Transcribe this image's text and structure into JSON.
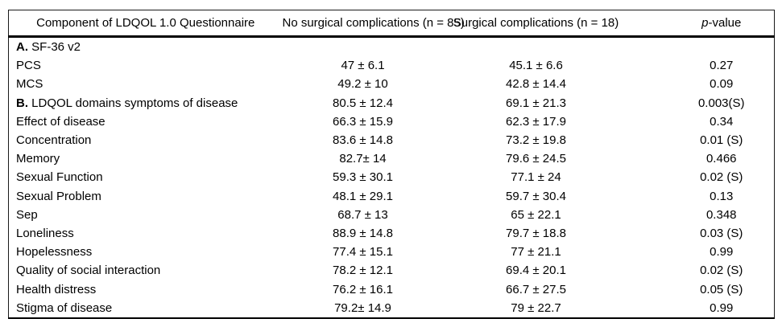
{
  "table": {
    "header": {
      "component": "Component of LDQOL 1.0 Questionnaire",
      "no_complications": "No surgical complications (n = 85)",
      "complications": "Surgical complications (n = 18)",
      "p_italic": "p",
      "p_rest": "-value"
    },
    "rows": [
      {
        "prefix": "A.",
        "label": " SF-36 v2",
        "no_complications": "",
        "complications": "",
        "p_value": ""
      },
      {
        "prefix": "",
        "label": "PCS",
        "no_complications": "47 ± 6.1",
        "complications": "45.1 ± 6.6",
        "p_value": "0.27"
      },
      {
        "prefix": "",
        "label": "MCS",
        "no_complications": "49.2 ± 10",
        "complications": "42.8 ± 14.4",
        "p_value": "0.09"
      },
      {
        "prefix": "B.",
        "label": " LDQOL domains symptoms of disease",
        "no_complications": "80.5 ± 12.4",
        "complications": "69.1 ± 21.3",
        "p_value": "0.003(S)"
      },
      {
        "prefix": "",
        "label": "Effect of disease",
        "no_complications": "66.3 ± 15.9",
        "complications": "62.3 ± 17.9",
        "p_value": "0.34"
      },
      {
        "prefix": "",
        "label": "Concentration",
        "no_complications": "83.6 ± 14.8",
        "complications": "73.2 ± 19.8",
        "p_value": "0.01 (S)"
      },
      {
        "prefix": "",
        "label": "Memory",
        "no_complications": "82.7± 14",
        "complications": "79.6 ± 24.5",
        "p_value": "0.466"
      },
      {
        "prefix": "",
        "label": "Sexual Function",
        "no_complications": "59.3 ± 30.1",
        "complications": "77.1 ± 24",
        "p_value": "0.02 (S)"
      },
      {
        "prefix": "",
        "label": "Sexual Problem",
        "no_complications": "48.1 ± 29.1",
        "complications": "59.7 ± 30.4",
        "p_value": "0.13"
      },
      {
        "prefix": "",
        "label": "Sep",
        "no_complications": "68.7 ± 13",
        "complications": "65 ± 22.1",
        "p_value": "0.348"
      },
      {
        "prefix": "",
        "label": "Loneliness",
        "no_complications": "88.9 ± 14.8",
        "complications": "79.7 ± 18.8",
        "p_value": "0.03 (S)"
      },
      {
        "prefix": "",
        "label": "Hopelessness",
        "no_complications": "77.4 ± 15.1",
        "complications": "77 ± 21.1",
        "p_value": "0.99"
      },
      {
        "prefix": "",
        "label": "Quality of social interaction",
        "no_complications": "78.2 ± 12.1",
        "complications": "69.4 ± 20.1",
        "p_value": "0.02 (S)"
      },
      {
        "prefix": "",
        "label": "Health distress",
        "no_complications": "76.2 ± 16.1",
        "complications": "66.7 ± 27.5",
        "p_value": "0.05 (S)"
      },
      {
        "prefix": "",
        "label": "Stigma of disease",
        "no_complications": "79.2± 14.9",
        "complications": "79 ± 22.7",
        "p_value": "0.99"
      }
    ],
    "colors": {
      "border": "#000000",
      "text": "#000000",
      "background": "#ffffff"
    }
  }
}
